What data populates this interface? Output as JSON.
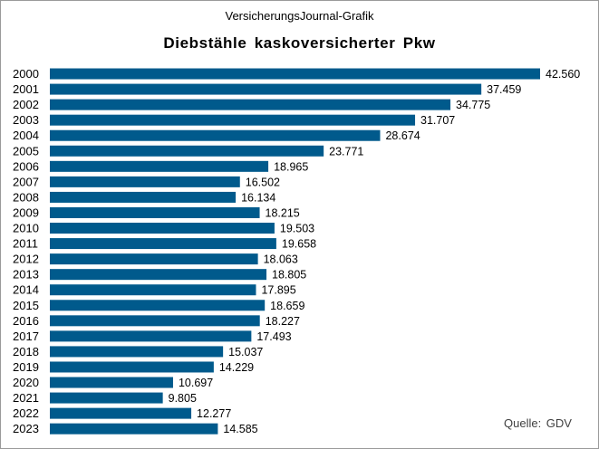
{
  "header": {
    "supertitle": "VersicherungsJournal-Grafik",
    "title": "Diebstähle kaskoversicherter Pkw"
  },
  "footer": {
    "source": "Quelle: GDV"
  },
  "colors": {
    "bar": "#005a8c",
    "text": "#000000"
  },
  "chart_data": {
    "type": "bar",
    "orientation": "horizontal",
    "title": "Diebstähle kaskoversicherter Pkw",
    "xlabel": "",
    "ylabel": "",
    "xlim": [
      0,
      42560
    ],
    "grid": false,
    "categories": [
      "2000",
      "2001",
      "2002",
      "2003",
      "2004",
      "2005",
      "2006",
      "2007",
      "2008",
      "2009",
      "2010",
      "2011",
      "2012",
      "2013",
      "2014",
      "2015",
      "2016",
      "2017",
      "2018",
      "2019",
      "2020",
      "2021",
      "2022",
      "2023"
    ],
    "values": [
      42560,
      37459,
      34775,
      31707,
      28674,
      23771,
      18965,
      16502,
      16134,
      18215,
      19503,
      19658,
      18063,
      18805,
      17895,
      18659,
      18227,
      17493,
      15037,
      14229,
      10697,
      9805,
      12277,
      14585
    ],
    "labels": [
      "42.560",
      "37.459",
      "34.775",
      "31.707",
      "28.674",
      "23.771",
      "18.965",
      "16.502",
      "16.134",
      "18.215",
      "19.503",
      "19.658",
      "18.063",
      "18.805",
      "17.895",
      "18.659",
      "18.227",
      "17.493",
      "15.037",
      "14.229",
      "10.697",
      "9.805",
      "12.277",
      "14.585"
    ]
  }
}
